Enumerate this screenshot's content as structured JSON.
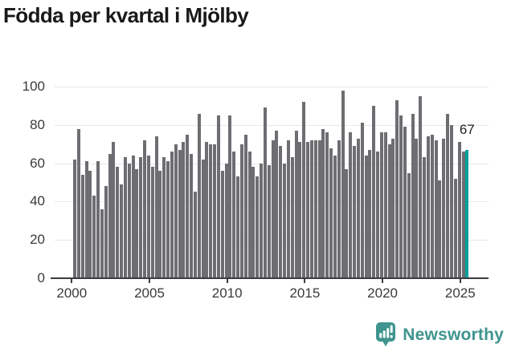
{
  "title": "Födda per kvartal i Mjölby",
  "chart_data": {
    "type": "bar",
    "title": "Födda per kvartal i Mjölby",
    "period_start": "2000 Q1",
    "period_end": "2025 Q2",
    "frequency": "quarterly",
    "values": [
      62,
      78,
      54,
      61,
      56,
      43,
      61,
      36,
      48,
      65,
      71,
      58,
      49,
      63,
      60,
      64,
      57,
      63,
      72,
      64,
      58,
      74,
      56,
      63,
      61,
      66,
      70,
      67,
      71,
      75,
      65,
      45,
      86,
      62,
      71,
      70,
      70,
      85,
      56,
      60,
      85,
      66,
      53,
      70,
      75,
      66,
      58,
      53,
      60,
      89,
      59,
      72,
      77,
      69,
      60,
      72,
      63,
      77,
      71,
      92,
      71,
      72,
      72,
      72,
      78,
      76,
      68,
      64,
      72,
      98,
      57,
      76,
      69,
      73,
      81,
      64,
      67,
      90,
      66,
      76,
      76,
      70,
      73,
      93,
      85,
      79,
      55,
      86,
      73,
      95,
      63,
      74,
      75,
      72,
      51,
      73,
      86,
      80,
      52,
      71,
      66,
      67
    ],
    "x_tick_labels": [
      "2000",
      "2005",
      "2010",
      "2015",
      "2020",
      "2025"
    ],
    "y_ticks": [
      0,
      20,
      40,
      60,
      80,
      100
    ],
    "ylim": [
      0,
      100
    ],
    "xlabel": "",
    "ylabel": "",
    "grid": true,
    "legend": "none",
    "bar_color": "#6d6d72",
    "highlight_index": 101,
    "highlight_color": "#00a29b",
    "highlight_label": "67"
  },
  "branding": {
    "name": "Newsworthy",
    "icon": "newsworthy-logo-icon",
    "text_color": "#3f948e",
    "icon_color": "#3f948e"
  }
}
